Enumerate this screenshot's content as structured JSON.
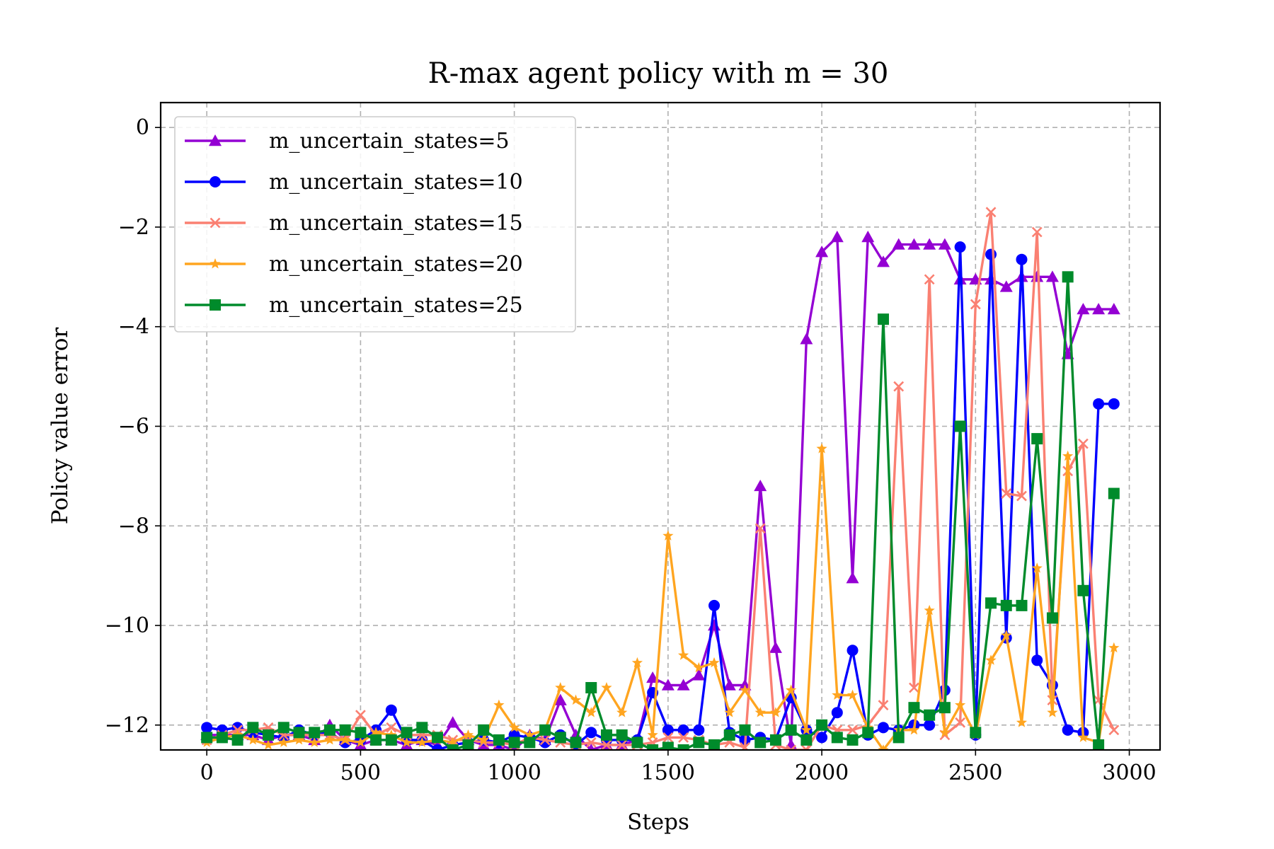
{
  "chart_data": {
    "type": "line",
    "title": "R-max agent policy with m = 30",
    "xlabel": "Steps",
    "ylabel": "Policy value error",
    "xlim": [
      -150,
      3100
    ],
    "ylim": [
      -12.5,
      0.5
    ],
    "xticks": [
      0,
      500,
      1000,
      1500,
      2000,
      2500,
      3000
    ],
    "xtick_labels": [
      "0",
      "500",
      "1000",
      "1500",
      "2000",
      "2500",
      "3000"
    ],
    "yticks": [
      0,
      -2,
      -4,
      -6,
      -8,
      -10,
      -12
    ],
    "ytick_labels": [
      "0",
      "−2",
      "−4",
      "−6",
      "−8",
      "−10",
      "−12"
    ],
    "grid": true,
    "legend_position": "top-left",
    "x": [
      0,
      50,
      100,
      150,
      200,
      250,
      300,
      350,
      400,
      450,
      500,
      550,
      600,
      650,
      700,
      750,
      800,
      850,
      900,
      950,
      1000,
      1050,
      1100,
      1150,
      1200,
      1250,
      1300,
      1350,
      1400,
      1450,
      1500,
      1550,
      1600,
      1650,
      1700,
      1750,
      1800,
      1850,
      1900,
      1950,
      2000,
      2050,
      2100,
      2150,
      2200,
      2250,
      2300,
      2350,
      2400,
      2450,
      2500,
      2550,
      2600,
      2650,
      2700,
      2750,
      2800,
      2850,
      2900,
      2950
    ],
    "series": [
      {
        "name": "m_uncertain_states=5",
        "color": "#9400d3",
        "marker": "triangle",
        "values": [
          -12.2,
          -12.2,
          -12.2,
          -12.2,
          -12.3,
          -12.2,
          -12.2,
          -12.3,
          -12.0,
          -12.3,
          -12.4,
          -12.3,
          -12.3,
          -12.4,
          -12.3,
          -12.4,
          -11.95,
          -12.3,
          -12.4,
          -12.4,
          -12.5,
          -12.2,
          -12.3,
          -11.5,
          -12.2,
          -12.5,
          -12.4,
          -12.4,
          -12.3,
          -11.05,
          -11.2,
          -11.2,
          -11.0,
          -10.0,
          -11.2,
          -11.2,
          -7.2,
          -10.45,
          -12.4,
          -4.25,
          -2.5,
          -2.2,
          -9.05,
          -2.2,
          -2.7,
          -2.35,
          -2.35,
          -2.35,
          -2.35,
          -3.05,
          -3.05,
          -3.05,
          -3.2,
          -3.0,
          -3.0,
          -3.0,
          -4.55,
          -3.65,
          -3.65,
          -3.65
        ]
      },
      {
        "name": "m_uncertain_states=10",
        "color": "#0000ff",
        "marker": "circle",
        "values": [
          -12.05,
          -12.1,
          -12.05,
          -12.15,
          -12.2,
          -12.25,
          -12.1,
          -12.2,
          -12.15,
          -12.35,
          -12.3,
          -12.1,
          -11.7,
          -12.3,
          -12.3,
          -12.5,
          -12.4,
          -12.35,
          -12.3,
          -12.35,
          -12.2,
          -12.25,
          -12.35,
          -12.2,
          -12.4,
          -12.15,
          -12.3,
          -12.3,
          -12.3,
          -11.35,
          -12.1,
          -12.1,
          -12.1,
          -9.6,
          -12.15,
          -12.3,
          -12.25,
          -12.3,
          -11.45,
          -12.1,
          -12.25,
          -11.75,
          -10.5,
          -12.2,
          -12.05,
          -12.1,
          -12.0,
          -12.0,
          -11.3,
          -2.4,
          -12.2,
          -2.55,
          -10.25,
          -2.65,
          -10.7,
          -11.2,
          -12.1,
          -12.15,
          -5.55,
          -5.55
        ]
      },
      {
        "name": "m_uncertain_states=15",
        "color": "#fa8072",
        "marker": "x",
        "values": [
          -12.3,
          -12.2,
          -12.1,
          -12.1,
          -12.05,
          -12.2,
          -12.2,
          -12.2,
          -12.2,
          -12.3,
          -11.8,
          -12.2,
          -12.05,
          -12.2,
          -12.2,
          -12.2,
          -12.3,
          -12.3,
          -12.35,
          -12.35,
          -12.4,
          -12.25,
          -12.3,
          -12.35,
          -12.4,
          -12.35,
          -12.4,
          -12.4,
          -12.4,
          -12.35,
          -12.25,
          -12.25,
          -12.3,
          -12.4,
          -12.35,
          -12.45,
          -8.05,
          -12.4,
          -12.5,
          -12.5,
          -12.0,
          -12.1,
          -12.1,
          -12.0,
          -11.6,
          -5.2,
          -11.25,
          -3.05,
          -12.2,
          -11.95,
          -3.55,
          -1.7,
          -7.35,
          -7.4,
          -2.1,
          -11.5,
          -6.9,
          -6.35,
          -11.5,
          -12.1
        ]
      },
      {
        "name": "m_uncertain_states=20",
        "color": "#ffa520",
        "marker": "star",
        "values": [
          -12.35,
          -12.25,
          -12.2,
          -12.3,
          -12.4,
          -12.35,
          -12.3,
          -12.35,
          -12.3,
          -12.3,
          -12.35,
          -12.15,
          -12.2,
          -12.35,
          -12.35,
          -12.3,
          -12.35,
          -12.2,
          -12.3,
          -11.6,
          -12.05,
          -12.2,
          -12.1,
          -11.25,
          -11.5,
          -11.75,
          -11.25,
          -11.75,
          -10.75,
          -12.2,
          -8.2,
          -10.6,
          -10.85,
          -10.75,
          -11.75,
          -11.3,
          -11.75,
          -11.75,
          -11.3,
          -12.1,
          -6.45,
          -11.4,
          -11.4,
          -12.05,
          -12.5,
          -12.1,
          -12.1,
          -9.7,
          -12.15,
          -11.6,
          -12.2,
          -10.7,
          -10.2,
          -11.95,
          -8.85,
          -11.75,
          -6.6,
          -12.25,
          -12.35,
          -10.45
        ]
      },
      {
        "name": "m_uncertain_states=25",
        "color": "#008b2b",
        "marker": "square",
        "values": [
          -12.25,
          -12.25,
          -12.3,
          -12.05,
          -12.2,
          -12.05,
          -12.15,
          -12.15,
          -12.1,
          -12.1,
          -12.15,
          -12.3,
          -12.3,
          -12.15,
          -12.05,
          -12.25,
          -12.5,
          -12.4,
          -12.1,
          -12.3,
          -12.35,
          -12.35,
          -12.1,
          -12.25,
          -12.35,
          -11.25,
          -12.2,
          -12.2,
          -12.35,
          -12.5,
          -12.45,
          -12.5,
          -12.35,
          -12.4,
          -12.2,
          -12.1,
          -12.35,
          -12.3,
          -12.1,
          -12.3,
          -12.0,
          -12.25,
          -12.3,
          -12.15,
          -3.85,
          -12.25,
          -11.65,
          -11.8,
          -11.65,
          -6.0,
          -12.15,
          -9.55,
          -9.6,
          -9.6,
          -6.25,
          -9.85,
          -3.0,
          -9.3,
          -12.4,
          -7.35
        ]
      }
    ]
  }
}
